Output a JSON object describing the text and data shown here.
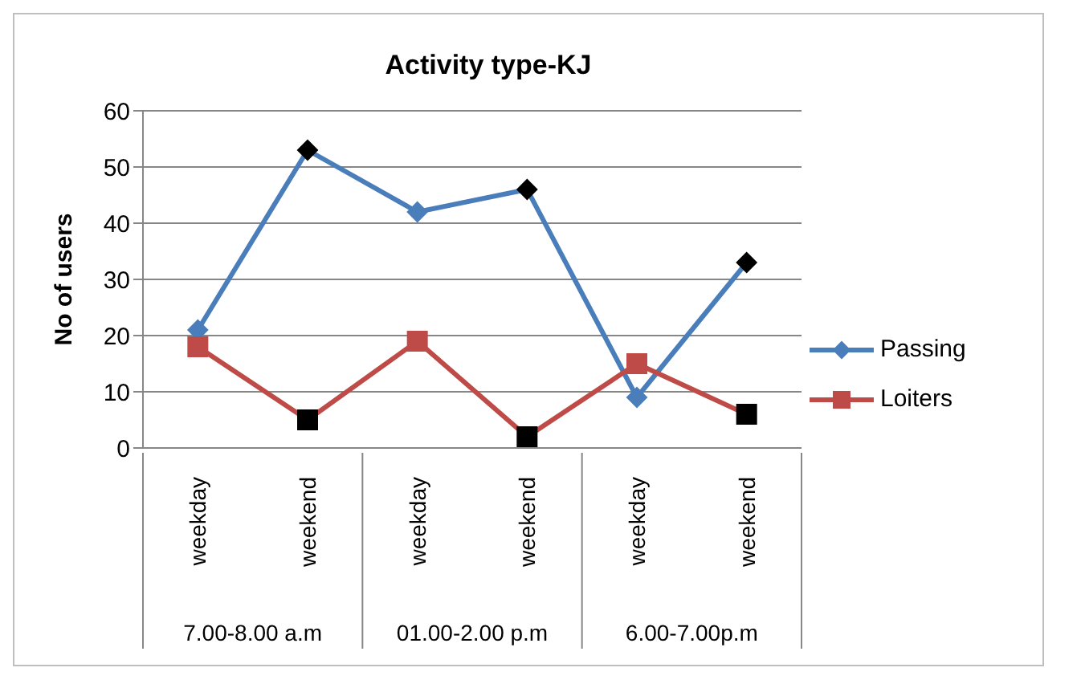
{
  "chart_data": {
    "type": "line",
    "title": "Activity type-KJ",
    "ylabel": "No of users",
    "categories": [
      "weekday",
      "weekend",
      "weekday",
      "weekend",
      "weekday",
      "weekend"
    ],
    "annotations": [
      "7.00-8.00 a.m",
      "01.00-2.00 p.m",
      "6.00-7.00p.m"
    ],
    "series": [
      {
        "name": "Passing",
        "color": "#4a7ebb",
        "marker": "diamond",
        "colors": [
          "#4a7ebb",
          "#000000",
          "#4a7ebb",
          "#000000",
          "#4a7ebb",
          "#000000"
        ],
        "values": [
          21,
          53,
          42,
          46,
          9,
          33
        ]
      },
      {
        "name": "Loiters",
        "color": "#be4b48",
        "marker": "square",
        "colors": [
          "#be4b48",
          "#000000",
          "#be4b48",
          "#000000",
          "#be4b48",
          "#000000"
        ],
        "values": [
          18,
          5,
          19,
          2,
          15,
          6
        ]
      }
    ],
    "ylim": [
      0,
      60
    ],
    "yticks": [
      0,
      10,
      20,
      30,
      40,
      50,
      60
    ],
    "grid": "y",
    "legend": "right"
  }
}
